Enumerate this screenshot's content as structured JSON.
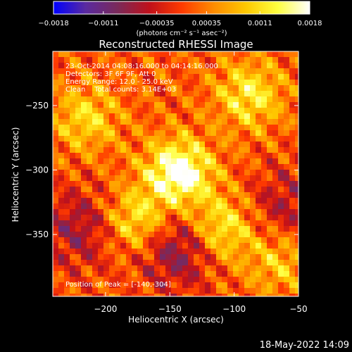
{
  "chart_data": {
    "type": "heatmap",
    "title": "Reconstructed RHESSI Image",
    "xlabel": "Heliocentric X (arcsec)",
    "ylabel": "Heliocentric Y (arcsec)",
    "xlim": [
      -241,
      -50
    ],
    "ylim": [
      -398,
      -208
    ],
    "x_ticks": [
      -200,
      -150,
      -100,
      -50
    ],
    "x_tick_labels": [
      "−200",
      "−150",
      "−100",
      "−50"
    ],
    "y_ticks": [
      -250,
      -300,
      -350
    ],
    "y_tick_labels": [
      "−250",
      "−300",
      "−350"
    ],
    "colorbar": {
      "range": [
        -0.0018,
        0.0018
      ],
      "ticks": [
        -0.0018,
        -0.0011,
        -0.00035,
        0.00035,
        0.0011,
        0.0018
      ],
      "tick_labels": [
        "−0.0018",
        "−0.0011",
        "−0.00035",
        "0.00035",
        "0.0011",
        "0.0018"
      ],
      "unit_label": "(photons cm⁻² s⁻¹ asec⁻²)",
      "colormap": [
        "#0000ff",
        "#5a2aa0",
        "#7a2a5a",
        "#c0101a",
        "#ff3a00",
        "#ff8c00",
        "#ffc800",
        "#ffff40",
        "#ffffff"
      ]
    },
    "peak_position": [
      -140,
      -304
    ],
    "bright_sources": [
      {
        "x": -143,
        "y": -302,
        "level": 0.0018
      },
      {
        "x": -175,
        "y": -340,
        "level": 0.0012
      },
      {
        "x": -110,
        "y": -345,
        "level": 0.0012
      },
      {
        "x": -88,
        "y": -242,
        "level": 0.0011
      },
      {
        "x": -215,
        "y": -260,
        "level": 0.0009
      },
      {
        "x": -65,
        "y": -370,
        "level": 0.0008
      }
    ],
    "dim_regions": [
      {
        "x": -145,
        "y": -360,
        "level": -0.0011
      },
      {
        "x": -220,
        "y": -345,
        "level": -0.0008
      },
      {
        "x": -60,
        "y": -330,
        "level": -0.0007
      }
    ],
    "annotations": [
      "23-Oct-2014 04:08:16.000 to 04:14:16.000",
      "Detectors: 3F 6F 9F, Att 0",
      "Energy Range: 12.0 - 25.0 keV",
      "Clean    Total counts: 3.14E+03",
      "Position of Peak = [-140,-304]"
    ]
  },
  "footer": {
    "date": "18-May-2022 14:09"
  }
}
